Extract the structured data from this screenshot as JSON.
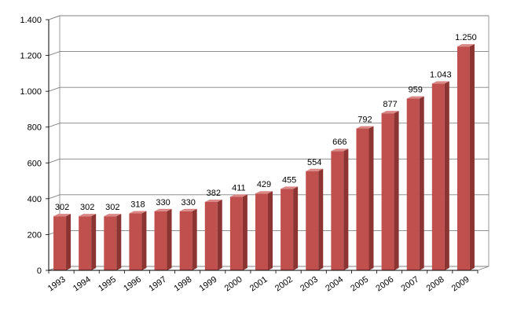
{
  "chart_data": {
    "type": "bar",
    "title": "",
    "xlabel": "",
    "ylabel": "",
    "categories": [
      "1993",
      "1994",
      "1995",
      "1996",
      "1997",
      "1998",
      "1999",
      "2000",
      "2001",
      "2002",
      "2003",
      "2004",
      "2005",
      "2006",
      "2007",
      "2008",
      "2009"
    ],
    "values": [
      302,
      302,
      302,
      318,
      330,
      330,
      382,
      411,
      429,
      455,
      554,
      666,
      792,
      877,
      959,
      1043,
      1250
    ],
    "value_labels": [
      "302",
      "302",
      "302",
      "318",
      "330",
      "330",
      "382",
      "411",
      "429",
      "455",
      "554",
      "666",
      "792",
      "877",
      "959",
      "1.043",
      "1.250"
    ],
    "ylim": [
      0,
      1400
    ],
    "yticks": [
      0,
      200,
      400,
      600,
      800,
      1000,
      1200,
      1400
    ],
    "ytick_labels": [
      "0",
      "200",
      "400",
      "600",
      "800",
      "1.000",
      "1.200",
      "1.400"
    ],
    "grid": true,
    "legend": "none",
    "style": "3d-column",
    "colors": {
      "bar_front": "#c0504d",
      "bar_side": "#8b3431",
      "bar_top": "#d98886",
      "grid": "#808080",
      "wall": "#ffffff",
      "axis": "#000000"
    }
  }
}
